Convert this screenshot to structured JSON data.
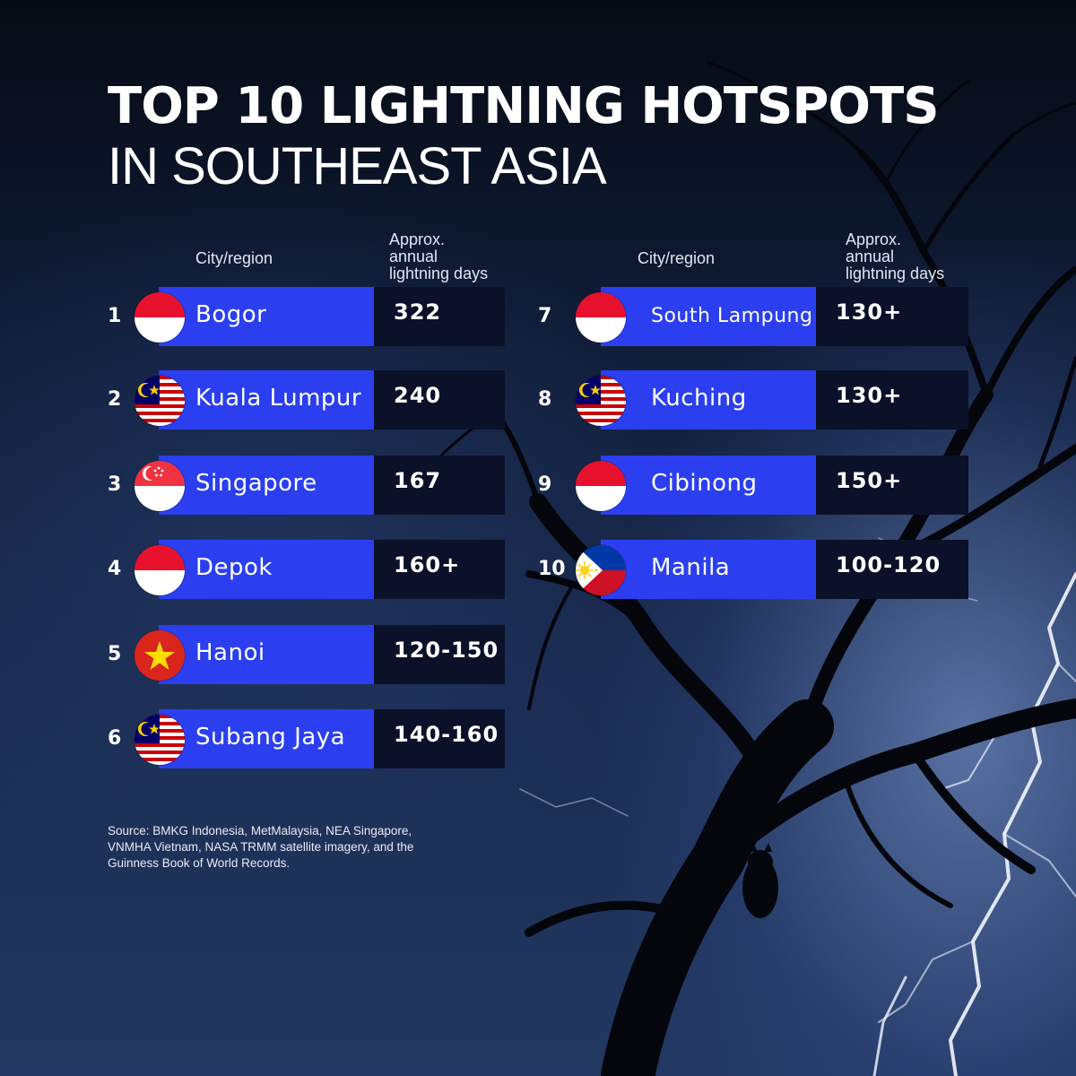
{
  "title": {
    "line1": "TOP 10 LIGHTNING HOTSPOTS",
    "line2": "IN SOUTHEAST ASIA"
  },
  "headers": {
    "city": "City/region",
    "days": "Approx.\nannual\nlightning days"
  },
  "colors": {
    "name_bar": "#2b3ff0",
    "value_box": "#0b1129"
  },
  "chart_data": {
    "type": "table",
    "title": "TOP 10 LIGHTNING HOTSPOTS IN SOUTHEAST ASIA",
    "columns": [
      "City/region",
      "Approx. annual lightning days"
    ],
    "rows": [
      {
        "rank": "1",
        "city": "Bogor",
        "days": "322",
        "flag": "indonesia-flag-icon"
      },
      {
        "rank": "2",
        "city": "Kuala Lumpur",
        "days": "240",
        "flag": "malaysia-flag-icon"
      },
      {
        "rank": "3",
        "city": "Singapore",
        "days": "167",
        "flag": "singapore-flag-icon"
      },
      {
        "rank": "4",
        "city": "Depok",
        "days": "160+",
        "flag": "indonesia-flag-icon"
      },
      {
        "rank": "5",
        "city": "Hanoi",
        "days": "120-150",
        "flag": "vietnam-flag-icon"
      },
      {
        "rank": "6",
        "city": "Subang Jaya",
        "days": "140-160",
        "flag": "malaysia-flag-icon"
      },
      {
        "rank": "7",
        "city": "South Lampung",
        "days": "130+",
        "flag": "indonesia-flag-icon"
      },
      {
        "rank": "8",
        "city": "Kuching",
        "days": "130+",
        "flag": "malaysia-flag-icon"
      },
      {
        "rank": "9",
        "city": "Cibinong",
        "days": "150+",
        "flag": "indonesia-flag-icon"
      },
      {
        "rank": "10",
        "city": "Manila",
        "days": "100-120",
        "flag": "philippines-flag-icon"
      }
    ]
  },
  "source": "Source: BMKG Indonesia, MetMalaysia, NEA Singapore, VNMHA Vietnam, NASA TRMM satellite imagery, and the Guinness Book of World Records."
}
